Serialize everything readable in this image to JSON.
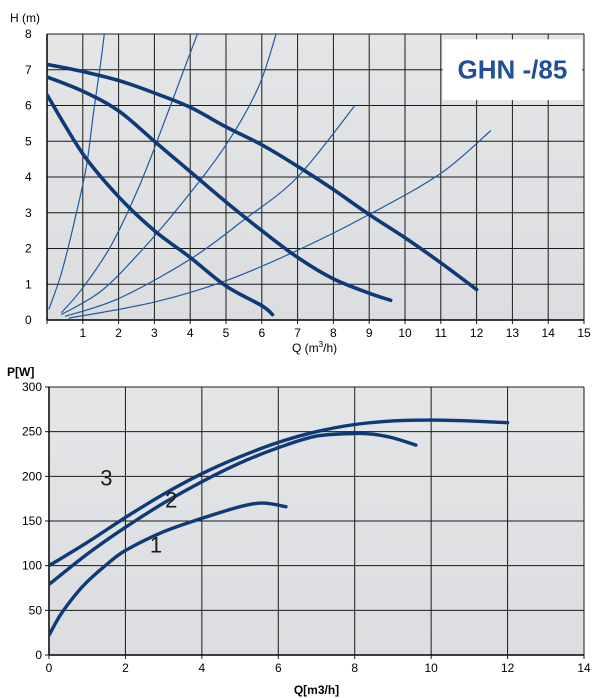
{
  "colors": {
    "curve": "#0e3a78",
    "system_curve": "#1f5aa0",
    "plot_bg_top": "#e4e5e7",
    "plot_bg_bottom": "#dcdde0",
    "grid": "#1a1a1a",
    "brand": "#1f4f9a"
  },
  "chart_data": [
    {
      "type": "line",
      "title": "GHN -/85",
      "ylabel": "H (m)",
      "xlabel_main": "Q (m",
      "xlabel_sup": "3",
      "xlabel_tail": "/h)",
      "xlim": [
        0,
        15
      ],
      "ylim": [
        0,
        8
      ],
      "xticks": [
        "1",
        "2",
        "3",
        "4",
        "5",
        "6",
        "7",
        "8",
        "9",
        "10",
        "11",
        "12",
        "13",
        "14",
        "15"
      ],
      "yticks": [
        "0",
        "1",
        "2",
        "3",
        "4",
        "5",
        "6",
        "7",
        "8"
      ],
      "grid": true,
      "series": [
        {
          "points": [
            [
              0,
              6.3
            ],
            [
              1,
              4.65
            ],
            [
              2,
              3.45
            ],
            [
              3,
              2.5
            ],
            [
              4,
              1.75
            ],
            [
              5,
              0.95
            ],
            [
              6,
              0.4
            ],
            [
              6.3,
              0.15
            ]
          ]
        },
        {
          "points": [
            [
              0,
              6.8
            ],
            [
              1,
              6.4
            ],
            [
              2,
              5.85
            ],
            [
              3,
              5.0
            ],
            [
              4,
              4.15
            ],
            [
              5,
              3.3
            ],
            [
              6,
              2.5
            ],
            [
              7,
              1.75
            ],
            [
              8,
              1.15
            ],
            [
              9,
              0.75
            ],
            [
              9.6,
              0.55
            ]
          ]
        },
        {
          "points": [
            [
              0,
              7.15
            ],
            [
              1,
              6.95
            ],
            [
              2,
              6.7
            ],
            [
              3,
              6.35
            ],
            [
              4,
              5.95
            ],
            [
              5,
              5.4
            ],
            [
              6,
              4.9
            ],
            [
              7,
              4.3
            ],
            [
              8,
              3.65
            ],
            [
              9,
              2.95
            ],
            [
              10,
              2.3
            ],
            [
              11,
              1.6
            ],
            [
              12,
              0.85
            ]
          ]
        }
      ],
      "system_curves": [
        {
          "points": [
            [
              0.05,
              0.3
            ],
            [
              0.4,
              1.3
            ],
            [
              0.8,
              2.9
            ],
            [
              1.1,
              4.3
            ],
            [
              1.3,
              5.8
            ],
            [
              1.5,
              7.2
            ],
            [
              1.6,
              8.0
            ]
          ]
        },
        {
          "points": [
            [
              0.4,
              0.2
            ],
            [
              1.0,
              0.9
            ],
            [
              1.8,
              2.1
            ],
            [
              2.6,
              3.8
            ],
            [
              3.3,
              5.6
            ],
            [
              3.9,
              7.2
            ],
            [
              4.2,
              8.0
            ]
          ]
        },
        {
          "points": [
            [
              0.4,
              0.15
            ],
            [
              1.5,
              0.8
            ],
            [
              2.6,
              1.9
            ],
            [
              3.8,
              3.3
            ],
            [
              5.0,
              4.9
            ],
            [
              5.9,
              6.5
            ],
            [
              6.4,
              8.0
            ]
          ]
        },
        {
          "points": [
            [
              0.5,
              0.1
            ],
            [
              2,
              0.6
            ],
            [
              4,
              1.7
            ],
            [
              5.5,
              2.8
            ],
            [
              7,
              4.0
            ],
            [
              8.6,
              6.0
            ]
          ]
        },
        {
          "points": [
            [
              0.6,
              0.05
            ],
            [
              3,
              0.5
            ],
            [
              5,
              1.1
            ],
            [
              7,
              1.95
            ],
            [
              9,
              2.95
            ],
            [
              11,
              4.1
            ],
            [
              12.4,
              5.3
            ]
          ]
        }
      ]
    },
    {
      "type": "line",
      "ylabel": "P[W]",
      "xlabel": "Q[m3/h]",
      "xlim": [
        0,
        14
      ],
      "ylim": [
        0,
        300
      ],
      "xticks": [
        "0",
        "2",
        "4",
        "6",
        "8",
        "10",
        "12",
        "14"
      ],
      "yticks": [
        "0",
        "50",
        "100",
        "150",
        "200",
        "250",
        "300"
      ],
      "grid": true,
      "series": [
        {
          "name": "1",
          "label_at": [
            2.8,
            115
          ],
          "points": [
            [
              0,
              22
            ],
            [
              0.3,
              45
            ],
            [
              0.7,
              68
            ],
            [
              1,
              82
            ],
            [
              1.5,
              101
            ],
            [
              2,
              117
            ],
            [
              3,
              138
            ],
            [
              4,
              153
            ],
            [
              5,
              166
            ],
            [
              5.6,
              170
            ],
            [
              6.2,
              166
            ]
          ]
        },
        {
          "name": "2",
          "label_at": [
            3.2,
            165
          ],
          "points": [
            [
              0,
              79
            ],
            [
              1,
              113
            ],
            [
              2,
              143
            ],
            [
              3,
              170
            ],
            [
              4,
              194
            ],
            [
              5,
              215
            ],
            [
              6,
              232
            ],
            [
              7,
              245
            ],
            [
              8,
              248
            ],
            [
              8.5,
              247
            ],
            [
              9,
              243
            ],
            [
              9.6,
              235
            ]
          ]
        },
        {
          "name": "3",
          "label_at": [
            1.5,
            190
          ],
          "points": [
            [
              0,
              100
            ],
            [
              1,
              126
            ],
            [
              2,
              154
            ],
            [
              3,
              180
            ],
            [
              4,
              203
            ],
            [
              5,
              222
            ],
            [
              6,
              238
            ],
            [
              7,
              250
            ],
            [
              8,
              258
            ],
            [
              9,
              262
            ],
            [
              10,
              263
            ],
            [
              11,
              262
            ],
            [
              12,
              260
            ]
          ]
        }
      ]
    }
  ]
}
